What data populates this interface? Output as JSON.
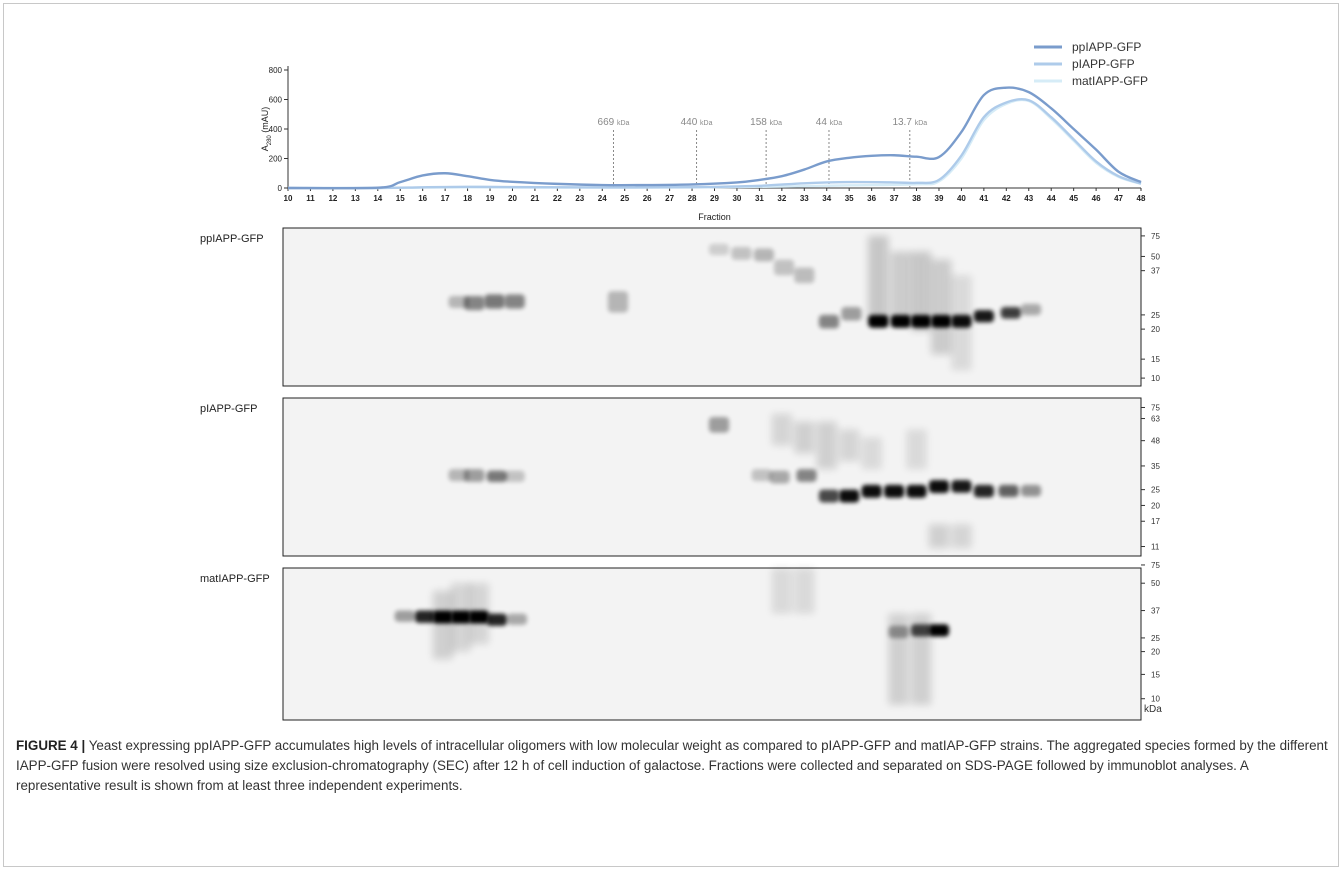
{
  "chart_data": {
    "type": "line",
    "xlabel": "Fraction",
    "ylabel_main": "A",
    "ylabel_sub": "280",
    "ylabel_unit": " (mAU)",
    "xlim": [
      10,
      48
    ],
    "ylim": [
      0,
      800
    ],
    "yticks": [
      0,
      200,
      400,
      600,
      800
    ],
    "xticks": [
      10,
      11,
      12,
      13,
      14,
      15,
      16,
      17,
      18,
      19,
      20,
      21,
      22,
      23,
      24,
      25,
      26,
      27,
      28,
      29,
      30,
      31,
      32,
      33,
      34,
      35,
      36,
      37,
      38,
      39,
      40,
      41,
      42,
      43,
      44,
      45,
      46,
      47,
      48
    ],
    "legend_position": "top-right",
    "series": [
      {
        "name": "ppIAPP-GFP",
        "color": "#7a9ccc",
        "points": [
          [
            10,
            0
          ],
          [
            14,
            2
          ],
          [
            15,
            40
          ],
          [
            16,
            85
          ],
          [
            17,
            100
          ],
          [
            18,
            80
          ],
          [
            19,
            55
          ],
          [
            20,
            42
          ],
          [
            22,
            28
          ],
          [
            24,
            20
          ],
          [
            26,
            20
          ],
          [
            28,
            24
          ],
          [
            30,
            38
          ],
          [
            31,
            55
          ],
          [
            32,
            80
          ],
          [
            33,
            125
          ],
          [
            34,
            180
          ],
          [
            35,
            205
          ],
          [
            36,
            218
          ],
          [
            37,
            222
          ],
          [
            38,
            212
          ],
          [
            39,
            210
          ],
          [
            40,
            380
          ],
          [
            41,
            630
          ],
          [
            42,
            680
          ],
          [
            43,
            650
          ],
          [
            44,
            540
          ],
          [
            45,
            400
          ],
          [
            46,
            260
          ],
          [
            47,
            110
          ],
          [
            48,
            40
          ]
        ]
      },
      {
        "name": "pIAPP-GFP",
        "color": "#aecbea",
        "points": [
          [
            10,
            0
          ],
          [
            14,
            0
          ],
          [
            16,
            5
          ],
          [
            18,
            8
          ],
          [
            20,
            6
          ],
          [
            24,
            4
          ],
          [
            28,
            6
          ],
          [
            31,
            15
          ],
          [
            33,
            32
          ],
          [
            35,
            40
          ],
          [
            37,
            38
          ],
          [
            38,
            35
          ],
          [
            39,
            55
          ],
          [
            40,
            220
          ],
          [
            41,
            480
          ],
          [
            42,
            580
          ],
          [
            43,
            595
          ],
          [
            44,
            480
          ],
          [
            45,
            330
          ],
          [
            46,
            180
          ],
          [
            47,
            80
          ],
          [
            48,
            30
          ]
        ]
      },
      {
        "name": "matIAPP-GFP",
        "color": "#d6ecf7",
        "points": [
          [
            10,
            0
          ],
          [
            14,
            0
          ],
          [
            16,
            3
          ],
          [
            18,
            5
          ],
          [
            20,
            4
          ],
          [
            24,
            3
          ],
          [
            28,
            4
          ],
          [
            32,
            10
          ],
          [
            35,
            18
          ],
          [
            38,
            25
          ],
          [
            39,
            45
          ],
          [
            40,
            200
          ],
          [
            41,
            460
          ],
          [
            42,
            570
          ],
          [
            43,
            590
          ],
          [
            44,
            470
          ],
          [
            45,
            320
          ],
          [
            46,
            170
          ],
          [
            47,
            75
          ],
          [
            48,
            28
          ]
        ]
      }
    ],
    "mw_markers": [
      {
        "x": 24.5,
        "value": "669",
        "unit": "kDa"
      },
      {
        "x": 28.2,
        "value": "440",
        "unit": "kDa"
      },
      {
        "x": 31.3,
        "value": "158",
        "unit": "kDa"
      },
      {
        "x": 34.1,
        "value": "44",
        "unit": "kDa"
      },
      {
        "x": 37.7,
        "value": "13.7",
        "unit": "kDa"
      }
    ]
  },
  "blots": [
    {
      "label": "ppIAPP-GFP",
      "ladder": [
        "75",
        "50",
        "37",
        "25",
        "20",
        "15",
        "10"
      ],
      "ladder_pos": [
        0.05,
        0.18,
        0.27,
        0.55,
        0.64,
        0.83,
        0.95
      ]
    },
    {
      "label": "pIAPP-GFP",
      "ladder": [
        "75",
        "63",
        "48",
        "35",
        "25",
        "20",
        "17",
        "11"
      ],
      "ladder_pos": [
        0.06,
        0.13,
        0.27,
        0.43,
        0.58,
        0.68,
        0.78,
        0.94
      ]
    },
    {
      "label": "matIAPP-GFP",
      "ladder": [
        "75",
        "50",
        "37",
        "25",
        "20",
        "15",
        "10"
      ],
      "ladder_pos": [
        -0.02,
        0.1,
        0.28,
        0.46,
        0.55,
        0.7,
        0.86
      ]
    }
  ],
  "kda_label": "kDa",
  "caption": {
    "label": "FIGURE 4 |",
    "text": " Yeast expressing ppIAPP-GFP accumulates high levels of intracellular oligomers with low molecular weight as compared to pIAPP-GFP and matIAP-GFP strains. The aggregated species formed by the different IAPP-GFP fusion were resolved using size exclusion-chromatography (SEC) after 12 h of cell induction of galactose. Fractions were collected and separated on SDS-PAGE followed by immunoblot analyses. A representative result is shown from at least three independent experiments."
  }
}
